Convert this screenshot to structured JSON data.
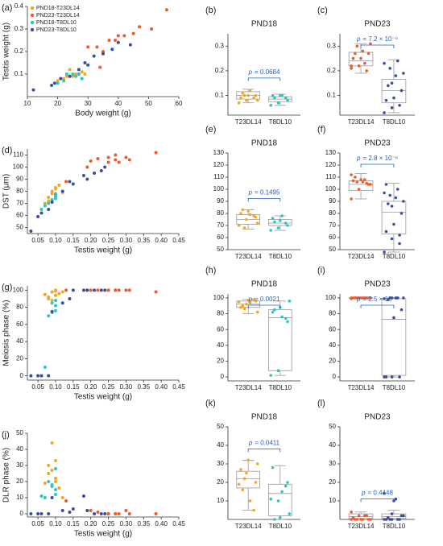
{
  "chart_data": [
    {
      "type": "scatter",
      "panel_label": "(a)",
      "x_label": "Body weight (g)",
      "y_label": "Testis weight (g)",
      "legend": "upper left",
      "xlim": [
        10,
        60
      ],
      "xticks": [
        10,
        20,
        30,
        40,
        50,
        60
      ],
      "ylim": [
        0,
        0.4
      ],
      "yticks": [
        0.1,
        0.2,
        0.3,
        0.4
      ],
      "series": [
        {
          "name": "PND18-T23DL14",
          "color": "#f5a623",
          "x": [
            20,
            22,
            23,
            25,
            26,
            27,
            28,
            24,
            21,
            29
          ],
          "values": [
            0.07,
            0.08,
            0.09,
            0.09,
            0.1,
            0.1,
            0.11,
            0.12,
            0.08,
            0.1
          ]
        },
        {
          "name": "PND23-T23DL14",
          "color": "#f05a28",
          "x": [
            30,
            33,
            35,
            37,
            39,
            40,
            42,
            45,
            47,
            51,
            56,
            34
          ],
          "values": [
            0.22,
            0.22,
            0.2,
            0.25,
            0.25,
            0.27,
            0.27,
            0.28,
            0.31,
            0.3,
            0.385,
            0.13
          ]
        },
        {
          "name": "PND18-T8DL10",
          "color": "#2ec4c4",
          "x": [
            20,
            22,
            24,
            25,
            27,
            28,
            26,
            23
          ],
          "values": [
            0.06,
            0.07,
            0.09,
            0.1,
            0.1,
            0.08,
            0.09,
            0.1
          ]
        },
        {
          "name": "PND23-T8DL10",
          "color": "#3b4fa0",
          "x": [
            12,
            18,
            19,
            21,
            24,
            27,
            30,
            32,
            35,
            38,
            40,
            44,
            29
          ],
          "values": [
            0.03,
            0.05,
            0.06,
            0.08,
            0.09,
            0.12,
            0.14,
            0.18,
            0.19,
            0.21,
            0.24,
            0.23,
            0.15
          ]
        }
      ]
    },
    {
      "type": "box",
      "panel_label": "(b)",
      "title": "PND18",
      "ylim": [
        0.02,
        0.35
      ],
      "yticks": [
        0.1,
        0.2,
        0.3
      ],
      "annotation": [
        "p",
        "= 0.0684"
      ],
      "groups": [
        {
          "category": "T23DL14",
          "color": "#f5a623",
          "whisker_low": 0.07,
          "q1": 0.085,
          "median": 0.1,
          "q3": 0.115,
          "whisker_high": 0.125,
          "points": [
            0.07,
            0.08,
            0.09,
            0.09,
            0.1,
            0.1,
            0.11,
            0.12,
            0.08,
            0.1
          ]
        },
        {
          "category": "T8DL10",
          "color": "#2ec4c4",
          "whisker_low": 0.06,
          "q1": 0.075,
          "median": 0.085,
          "q3": 0.095,
          "whisker_high": 0.105,
          "points": [
            0.06,
            0.07,
            0.09,
            0.1,
            0.1,
            0.08,
            0.09,
            0.1
          ]
        }
      ]
    },
    {
      "type": "box",
      "panel_label": "(c)",
      "title": "PND23",
      "ylim": [
        0.02,
        0.35
      ],
      "yticks": [
        0.1,
        0.2,
        0.3
      ],
      "annotation": [
        "p",
        "= 7.2 × 10⁻⁶"
      ],
      "groups": [
        {
          "category": "T23DL14",
          "color": "#f05a28",
          "whisker_low": 0.19,
          "q1": 0.22,
          "median": 0.24,
          "q3": 0.275,
          "whisker_high": 0.31,
          "points": [
            0.22,
            0.22,
            0.2,
            0.25,
            0.25,
            0.27,
            0.27,
            0.28,
            0.31,
            0.3,
            0.23,
            0.21
          ]
        },
        {
          "category": "T8DL10",
          "color": "#3b4fa0",
          "whisker_low": 0.03,
          "q1": 0.07,
          "median": 0.12,
          "q3": 0.165,
          "whisker_high": 0.245,
          "points": [
            0.03,
            0.05,
            0.06,
            0.08,
            0.09,
            0.12,
            0.14,
            0.18,
            0.19,
            0.21,
            0.24,
            0.23,
            0.15
          ]
        }
      ]
    },
    {
      "type": "scatter",
      "panel_label": "(d)",
      "x_label": "Testis weight (g)",
      "y_label": "DST (μm)",
      "xlim": [
        0.02,
        0.45
      ],
      "xticks": [
        0.05,
        {
          "value": 0.1,
          "label": "0.10"
        },
        0.15,
        {
          "value": 0.2,
          "label": "0.20"
        },
        0.25,
        {
          "value": 0.3,
          "label": "0.30"
        },
        0.35,
        {
          "value": 0.4,
          "label": "0.40"
        },
        0.45
      ],
      "ylim": [
        45,
        115
      ],
      "yticks": [
        50,
        60,
        70,
        80,
        90,
        100,
        110
      ],
      "series": [
        {
          "color": "#f5a623",
          "x": [
            0.07,
            0.08,
            0.09,
            0.09,
            0.1,
            0.1,
            0.11,
            0.12,
            0.08,
            0.1
          ],
          "values": [
            70,
            75,
            78,
            80,
            82,
            77,
            85,
            79,
            72,
            83
          ]
        },
        {
          "color": "#f05a28",
          "x": [
            0.13,
            0.19,
            0.2,
            0.22,
            0.25,
            0.25,
            0.27,
            0.27,
            0.28,
            0.31,
            0.3,
            0.385
          ],
          "values": [
            88,
            100,
            105,
            107,
            108,
            104,
            110,
            106,
            104,
            106,
            108,
            112
          ]
        },
        {
          "color": "#2ec4c4",
          "x": [
            0.06,
            0.07,
            0.09,
            0.1,
            0.1,
            0.08,
            0.09,
            0.1
          ],
          "values": [
            65,
            68,
            72,
            76,
            74,
            70,
            73,
            78
          ]
        },
        {
          "color": "#3b4fa0",
          "x": [
            0.03,
            0.05,
            0.06,
            0.08,
            0.09,
            0.12,
            0.14,
            0.18,
            0.19,
            0.21,
            0.24,
            0.23,
            0.15
          ],
          "values": [
            47,
            59,
            62,
            65,
            71,
            80,
            88,
            93,
            90,
            95,
            100,
            97,
            86
          ]
        }
      ]
    },
    {
      "type": "box",
      "panel_label": "(e)",
      "title": "PND18",
      "ylim": [
        50,
        130
      ],
      "yticks": [
        50,
        60,
        70,
        80,
        90,
        100,
        110,
        120,
        130
      ],
      "annotation": [
        "p",
        "= 0.1495"
      ],
      "groups": [
        {
          "category": "T23DL14",
          "color": "#f5a623",
          "whisker_low": 67,
          "q1": 71,
          "median": 75,
          "q3": 79,
          "whisker_high": 83,
          "points": [
            70,
            75,
            78,
            80,
            82,
            77,
            83,
            79,
            72,
            68
          ]
        },
        {
          "category": "T8DL10",
          "color": "#2ec4c4",
          "whisker_low": 66,
          "q1": 70,
          "median": 72,
          "q3": 75,
          "whisker_high": 78,
          "points": [
            66,
            68,
            72,
            76,
            74,
            70,
            73,
            78
          ]
        }
      ]
    },
    {
      "type": "box",
      "panel_label": "(f)",
      "title": "PND23",
      "ylim": [
        50,
        130
      ],
      "yticks": [
        50,
        60,
        70,
        80,
        90,
        100,
        110,
        120,
        130
      ],
      "annotation": [
        "p",
        "= 2.8 × 10⁻⁶"
      ],
      "groups": [
        {
          "category": "T23DL14",
          "color": "#f05a28",
          "whisker_low": 92,
          "q1": 99,
          "median": 104,
          "q3": 107,
          "whisker_high": 113,
          "points": [
            92,
            100,
            105,
            107,
            108,
            104,
            110,
            106,
            104,
            106,
            108,
            112
          ]
        },
        {
          "category": "T8DL10",
          "color": "#3b4fa0",
          "whisker_low": 48,
          "q1": 63,
          "median": 81,
          "q3": 90,
          "whisker_high": 105,
          "points": [
            48,
            59,
            62,
            65,
            71,
            80,
            88,
            93,
            90,
            95,
            100,
            97,
            86,
            55,
            104
          ]
        }
      ]
    },
    {
      "type": "scatter",
      "panel_label": "(g)",
      "x_label": "Testis weight (g)",
      "y_label": "Meiosis phase (%)",
      "xlim": [
        0.02,
        0.45
      ],
      "xticks": [
        0.05,
        {
          "value": 0.1,
          "label": "0.10"
        },
        0.15,
        {
          "value": 0.2,
          "label": "0.20"
        },
        0.25,
        {
          "value": 0.3,
          "label": "0.30"
        },
        0.35,
        {
          "value": 0.4,
          "label": "0.40"
        },
        0.45
      ],
      "ylim": [
        -5,
        105
      ],
      "yticks": [
        0,
        20,
        40,
        60,
        80,
        100
      ],
      "series": [
        {
          "color": "#f5a623",
          "x": [
            0.07,
            0.08,
            0.09,
            0.09,
            0.1,
            0.1,
            0.11,
            0.12,
            0.08,
            0.1
          ],
          "values": [
            95,
            92,
            98,
            88,
            100,
            99,
            96,
            98,
            90,
            94
          ]
        },
        {
          "color": "#f05a28",
          "x": [
            0.13,
            0.19,
            0.2,
            0.22,
            0.25,
            0.25,
            0.27,
            0.27,
            0.28,
            0.31,
            0.3,
            0.385
          ],
          "values": [
            100,
            100,
            100,
            100,
            100,
            100,
            100,
            100,
            100,
            100,
            100,
            98
          ]
        },
        {
          "color": "#2ec4c4",
          "x": [
            0.06,
            0.07,
            0.09,
            0.1,
            0.1,
            0.08,
            0.09,
            0.1
          ],
          "values": [
            0,
            10,
            74,
            82,
            88,
            70,
            85,
            76
          ]
        },
        {
          "color": "#3b4fa0",
          "x": [
            0.03,
            0.05,
            0.06,
            0.08,
            0.09,
            0.12,
            0.14,
            0.18,
            0.19,
            0.21,
            0.24,
            0.23,
            0.15
          ],
          "values": [
            0,
            0,
            0,
            0,
            75,
            85,
            90,
            100,
            100,
            100,
            100,
            100,
            100
          ]
        }
      ]
    },
    {
      "type": "box",
      "panel_label": "(h)",
      "title": "PND18",
      "ylim": [
        -5,
        105
      ],
      "yticks": [
        0,
        20,
        40,
        60,
        80,
        100
      ],
      "annotation": [
        "p",
        "= 0.0021"
      ],
      "groups": [
        {
          "category": "T23DL14",
          "color": "#f5a623",
          "whisker_low": 80,
          "q1": 88,
          "median": 92,
          "q3": 96,
          "whisker_high": 98,
          "points": [
            95,
            92,
            98,
            88,
            97,
            96,
            90,
            94,
            82,
            86
          ]
        },
        {
          "category": "T8DL10",
          "color": "#2ec4c4",
          "whisker_low": 2,
          "q1": 8,
          "median": 75,
          "q3": 85,
          "whisker_high": 96,
          "points": [
            2,
            8,
            74,
            82,
            88,
            70,
            85,
            76,
            96
          ]
        }
      ]
    },
    {
      "type": "box",
      "panel_label": "(i)",
      "title": "PND23",
      "ylim": [
        -5,
        105
      ],
      "yticks": [
        0,
        20,
        40,
        60,
        80,
        100
      ],
      "annotation": [
        "p",
        "= 2.5 × 10⁻⁵"
      ],
      "groups": [
        {
          "category": "T23DL14",
          "color": "#f05a28",
          "whisker_low": 99,
          "q1": 99.5,
          "median": 100,
          "q3": 100,
          "whisker_high": 100,
          "points": [
            100,
            100,
            100,
            100,
            100,
            100,
            100,
            100,
            100,
            100,
            100,
            99
          ]
        },
        {
          "category": "T8DL10",
          "color": "#3b4fa0",
          "whisker_low": 0,
          "q1": 2,
          "median": 73,
          "q3": 99,
          "whisker_high": 100,
          "points": [
            0,
            0,
            0,
            0,
            75,
            85,
            98,
            100,
            100,
            100,
            100,
            99,
            100
          ]
        }
      ]
    },
    {
      "type": "scatter",
      "panel_label": "(j)",
      "x_label": "Testis weight (g)",
      "y_label": "DLR phase (%)",
      "xlim": [
        0.02,
        0.45
      ],
      "xticks": [
        0.05,
        {
          "value": 0.1,
          "label": "0.10"
        },
        0.15,
        {
          "value": 0.2,
          "label": "0.20"
        },
        0.25,
        {
          "value": 0.3,
          "label": "0.30"
        },
        0.35,
        {
          "value": 0.4,
          "label": "0.40"
        },
        0.45
      ],
      "ylim": [
        -2,
        50
      ],
      "yticks": [
        0,
        10,
        20,
        30,
        40,
        50
      ],
      "series": [
        {
          "color": "#f5a623",
          "x": [
            0.07,
            0.08,
            0.09,
            0.09,
            0.1,
            0.1,
            0.11,
            0.12,
            0.08,
            0.1
          ],
          "values": [
            19,
            25,
            44,
            27,
            33,
            20,
            16,
            10,
            30,
            22
          ]
        },
        {
          "color": "#f05a28",
          "x": [
            0.13,
            0.19,
            0.2,
            0.22,
            0.25,
            0.25,
            0.27,
            0.27,
            0.28,
            0.31,
            0.3,
            0.385
          ],
          "values": [
            8,
            2,
            2,
            1,
            0,
            0,
            0,
            0,
            0,
            0,
            2,
            0
          ]
        },
        {
          "color": "#2ec4c4",
          "x": [
            0.06,
            0.07,
            0.09,
            0.1,
            0.1,
            0.08,
            0.09,
            0.1
          ],
          "values": [
            11,
            10,
            18,
            28,
            12,
            20,
            17,
            15
          ]
        },
        {
          "color": "#3b4fa0",
          "x": [
            0.03,
            0.05,
            0.06,
            0.08,
            0.09,
            0.12,
            0.14,
            0.18,
            0.19,
            0.21,
            0.24,
            0.23,
            0.15
          ],
          "values": [
            0,
            0,
            0,
            0,
            10,
            2,
            1,
            11,
            2,
            0,
            0,
            0,
            3
          ]
        }
      ]
    },
    {
      "type": "box",
      "panel_label": "(k)",
      "title": "PND18",
      "ylim": [
        0,
        50
      ],
      "yticks": [
        10,
        20,
        30,
        40,
        50
      ],
      "annotation": [
        "p",
        "= 0.0411"
      ],
      "groups": [
        {
          "category": "T23DL14",
          "color": "#f5a623",
          "whisker_low": 5,
          "q1": 17,
          "median": 22,
          "q3": 26,
          "whisker_high": 32,
          "points": [
            19,
            25,
            5,
            27,
            32,
            20,
            16,
            10,
            30,
            22
          ]
        },
        {
          "category": "T8DL10",
          "color": "#2ec4c4",
          "whisker_low": 0,
          "q1": 2,
          "median": 14,
          "q3": 19,
          "whisker_high": 29,
          "points": [
            11,
            10,
            18,
            28,
            1,
            20,
            0,
            15,
            3
          ]
        }
      ]
    },
    {
      "type": "box",
      "panel_label": "(l)",
      "title": "PND23",
      "ylim": [
        0,
        50
      ],
      "yticks": [
        10,
        20,
        30,
        40,
        50
      ],
      "annotation": [
        "p",
        "= 0.4448"
      ],
      "groups": [
        {
          "category": "T23DL14",
          "color": "#f05a28",
          "whisker_low": 0,
          "q1": 0.5,
          "median": 1.5,
          "q3": 3,
          "whisker_high": 4,
          "points": [
            4,
            2,
            2,
            1,
            0,
            0,
            0,
            0,
            0,
            0,
            2,
            0
          ]
        },
        {
          "category": "T8DL10",
          "color": "#3b4fa0",
          "whisker_low": 0,
          "q1": 0.5,
          "median": 1.5,
          "q3": 3,
          "whisker_high": 5,
          "points": [
            0,
            0,
            0,
            0,
            10,
            2,
            1,
            11,
            2,
            0,
            0,
            14,
            3
          ]
        }
      ]
    }
  ]
}
